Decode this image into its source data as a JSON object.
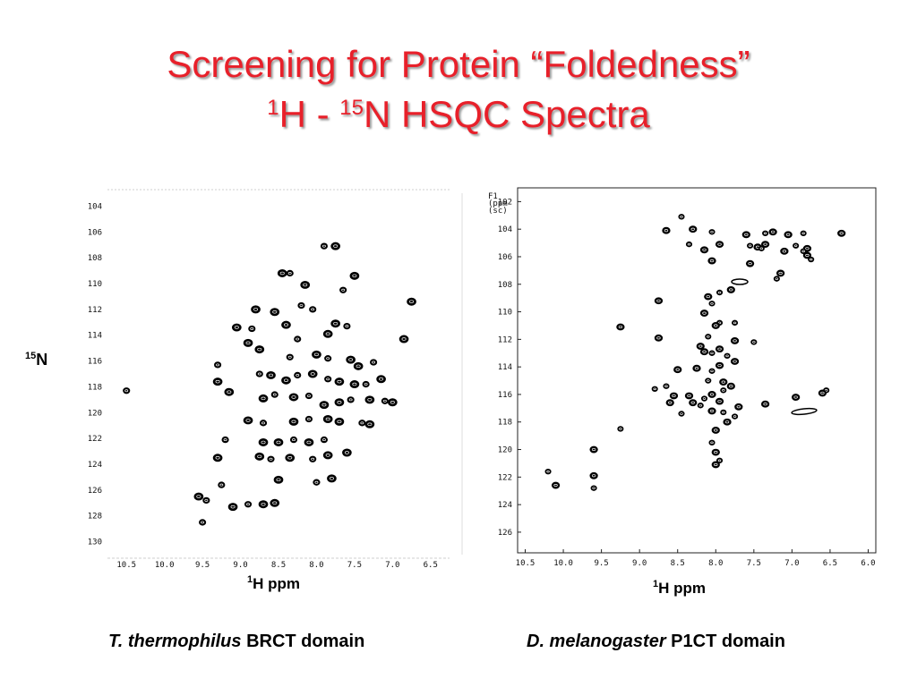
{
  "title": {
    "line1": "Screening for Protein “Foldedness”",
    "line2_sup1": "1",
    "line2_part1": "H - ",
    "line2_sup2": "15",
    "line2_part2": "N HSQC Spectra"
  },
  "left_panel": {
    "y_axis_label_sup": "15",
    "y_axis_label": "N",
    "x_axis_label_sup": "1",
    "x_axis_label": "H ppm",
    "caption_italic": "T. thermophilus",
    "caption_rest": " BRCT domain"
  },
  "right_panel": {
    "x_axis_label_sup": "1",
    "x_axis_label": "H ppm",
    "corner_text": [
      "F1",
      "(ppm",
      "(sc)"
    ],
    "caption_italic": "D. melanogaster",
    "caption_rest": " P1CT domain"
  },
  "chart_data": [
    {
      "type": "scatter",
      "title": "",
      "xlabel": "1H ppm",
      "ylabel": "15N",
      "x_ticks": [
        "10.5",
        "10.0",
        "9.5",
        "9.0",
        "8.5",
        "8.0",
        "7.5",
        "7.0",
        "6.5"
      ],
      "y_ticks": [
        "104",
        "106",
        "108",
        "110",
        "112",
        "114",
        "116",
        "118",
        "120",
        "122",
        "124",
        "126",
        "128",
        "130"
      ],
      "xlim": [
        10.75,
        6.25
      ],
      "ylim": [
        103,
        131
      ],
      "x_reversed": true,
      "y_reversed": true,
      "points": [
        [
          7.9,
          107.1
        ],
        [
          7.75,
          107.1
        ],
        [
          8.45,
          109.2
        ],
        [
          8.35,
          109.2
        ],
        [
          8.15,
          110.1
        ],
        [
          7.65,
          110.5
        ],
        [
          7.5,
          109.4
        ],
        [
          6.75,
          111.4
        ],
        [
          8.2,
          111.7
        ],
        [
          8.8,
          112.0
        ],
        [
          8.05,
          112.0
        ],
        [
          8.55,
          112.2
        ],
        [
          9.05,
          113.4
        ],
        [
          8.85,
          113.5
        ],
        [
          8.4,
          113.2
        ],
        [
          8.25,
          114.3
        ],
        [
          7.85,
          113.9
        ],
        [
          7.75,
          113.1
        ],
        [
          7.6,
          113.3
        ],
        [
          6.85,
          114.3
        ],
        [
          9.3,
          116.3
        ],
        [
          8.9,
          114.6
        ],
        [
          8.75,
          115.1
        ],
        [
          8.35,
          115.7
        ],
        [
          8.0,
          115.5
        ],
        [
          7.85,
          115.8
        ],
        [
          7.55,
          115.9
        ],
        [
          7.45,
          116.4
        ],
        [
          7.25,
          116.1
        ],
        [
          9.3,
          117.6
        ],
        [
          8.75,
          117.0
        ],
        [
          8.6,
          117.1
        ],
        [
          8.4,
          117.5
        ],
        [
          8.25,
          117.1
        ],
        [
          8.05,
          117.0
        ],
        [
          7.85,
          117.4
        ],
        [
          7.7,
          117.6
        ],
        [
          7.5,
          117.8
        ],
        [
          7.35,
          117.8
        ],
        [
          7.15,
          117.4
        ],
        [
          10.5,
          118.3
        ],
        [
          9.15,
          118.4
        ],
        [
          8.7,
          118.9
        ],
        [
          8.55,
          118.6
        ],
        [
          8.3,
          118.8
        ],
        [
          8.1,
          118.7
        ],
        [
          7.9,
          119.4
        ],
        [
          7.7,
          119.2
        ],
        [
          7.55,
          119.0
        ],
        [
          7.3,
          119.0
        ],
        [
          7.1,
          119.1
        ],
        [
          7.0,
          119.2
        ],
        [
          8.9,
          120.6
        ],
        [
          8.7,
          120.8
        ],
        [
          8.3,
          120.7
        ],
        [
          8.1,
          120.5
        ],
        [
          7.85,
          120.5
        ],
        [
          7.7,
          120.7
        ],
        [
          7.4,
          120.8
        ],
        [
          7.3,
          120.9
        ],
        [
          9.2,
          122.1
        ],
        [
          8.7,
          122.3
        ],
        [
          8.5,
          122.3
        ],
        [
          8.3,
          122.1
        ],
        [
          8.1,
          122.3
        ],
        [
          7.9,
          122.1
        ],
        [
          9.3,
          123.5
        ],
        [
          8.75,
          123.4
        ],
        [
          8.6,
          123.6
        ],
        [
          8.35,
          123.5
        ],
        [
          8.05,
          123.6
        ],
        [
          7.85,
          123.3
        ],
        [
          7.6,
          123.1
        ],
        [
          9.25,
          125.6
        ],
        [
          8.5,
          125.2
        ],
        [
          8.0,
          125.4
        ],
        [
          7.8,
          125.1
        ],
        [
          9.55,
          126.5
        ],
        [
          9.45,
          126.8
        ],
        [
          9.1,
          127.3
        ],
        [
          8.9,
          127.1
        ],
        [
          8.7,
          127.1
        ],
        [
          8.55,
          127.0
        ],
        [
          9.5,
          128.5
        ]
      ]
    },
    {
      "type": "scatter",
      "title": "",
      "xlabel": "1H ppm",
      "ylabel": "F1 (ppm)",
      "x_ticks": [
        "10.5",
        "10.0",
        "9.5",
        "9.0",
        "8.5",
        "8.0",
        "7.5",
        "7.0",
        "6.5",
        "6.0"
      ],
      "y_ticks": [
        "102",
        "104",
        "106",
        "108",
        "110",
        "112",
        "114",
        "116",
        "118",
        "120",
        "122",
        "124",
        "126"
      ],
      "xlim": [
        10.6,
        5.9
      ],
      "ylim": [
        101,
        127.5
      ],
      "x_reversed": true,
      "y_reversed": true,
      "points": [
        [
          8.45,
          103.1
        ],
        [
          8.65,
          104.1
        ],
        [
          8.3,
          104.0
        ],
        [
          8.05,
          104.2
        ],
        [
          7.6,
          104.4
        ],
        [
          7.35,
          104.3
        ],
        [
          7.25,
          104.2
        ],
        [
          7.05,
          104.4
        ],
        [
          6.85,
          104.3
        ],
        [
          6.35,
          104.3
        ],
        [
          8.35,
          105.1
        ],
        [
          8.15,
          105.5
        ],
        [
          7.95,
          105.1
        ],
        [
          7.55,
          105.2
        ],
        [
          7.45,
          105.3
        ],
        [
          7.4,
          105.4
        ],
        [
          7.35,
          105.1
        ],
        [
          7.1,
          105.6
        ],
        [
          6.95,
          105.2
        ],
        [
          6.8,
          105.4
        ],
        [
          6.85,
          105.6
        ],
        [
          8.05,
          106.3
        ],
        [
          7.55,
          106.5
        ],
        [
          6.75,
          106.2
        ],
        [
          6.8,
          105.9
        ],
        [
          7.2,
          107.6
        ],
        [
          7.15,
          107.2
        ],
        [
          7.8,
          108.4
        ],
        [
          7.95,
          108.6
        ],
        [
          8.1,
          108.9
        ],
        [
          8.05,
          109.4
        ],
        [
          8.75,
          109.2
        ],
        [
          8.15,
          110.1
        ],
        [
          7.95,
          110.8
        ],
        [
          8.0,
          111.0
        ],
        [
          7.75,
          110.8
        ],
        [
          9.25,
          111.1
        ],
        [
          8.75,
          111.9
        ],
        [
          8.1,
          111.8
        ],
        [
          7.75,
          112.1
        ],
        [
          7.5,
          112.2
        ],
        [
          8.2,
          112.5
        ],
        [
          8.15,
          112.9
        ],
        [
          8.05,
          113.0
        ],
        [
          7.95,
          112.7
        ],
        [
          7.85,
          113.2
        ],
        [
          7.75,
          113.6
        ],
        [
          7.95,
          113.9
        ],
        [
          8.05,
          114.3
        ],
        [
          8.25,
          114.1
        ],
        [
          8.1,
          115.0
        ],
        [
          7.9,
          115.1
        ],
        [
          7.8,
          115.4
        ],
        [
          7.9,
          115.7
        ],
        [
          8.05,
          116.0
        ],
        [
          8.15,
          116.3
        ],
        [
          7.95,
          116.5
        ],
        [
          8.3,
          116.6
        ],
        [
          8.2,
          116.8
        ],
        [
          8.05,
          117.2
        ],
        [
          7.9,
          117.3
        ],
        [
          7.7,
          116.9
        ],
        [
          7.35,
          116.7
        ],
        [
          7.75,
          117.6
        ],
        [
          8.5,
          114.2
        ],
        [
          8.65,
          115.4
        ],
        [
          8.55,
          116.1
        ],
        [
          8.35,
          116.1
        ],
        [
          8.8,
          115.6
        ],
        [
          8.6,
          116.6
        ],
        [
          8.45,
          117.4
        ],
        [
          7.85,
          118.0
        ],
        [
          8.0,
          118.6
        ],
        [
          8.05,
          119.5
        ],
        [
          8.0,
          120.2
        ],
        [
          7.95,
          120.8
        ],
        [
          8.0,
          121.1
        ],
        [
          6.95,
          116.2
        ],
        [
          6.55,
          115.7
        ],
        [
          6.6,
          115.9
        ],
        [
          9.25,
          118.5
        ],
        [
          9.6,
          120.0
        ],
        [
          9.6,
          121.9
        ],
        [
          10.2,
          121.6
        ],
        [
          10.1,
          122.6
        ],
        [
          9.6,
          122.8
        ]
      ]
    }
  ]
}
